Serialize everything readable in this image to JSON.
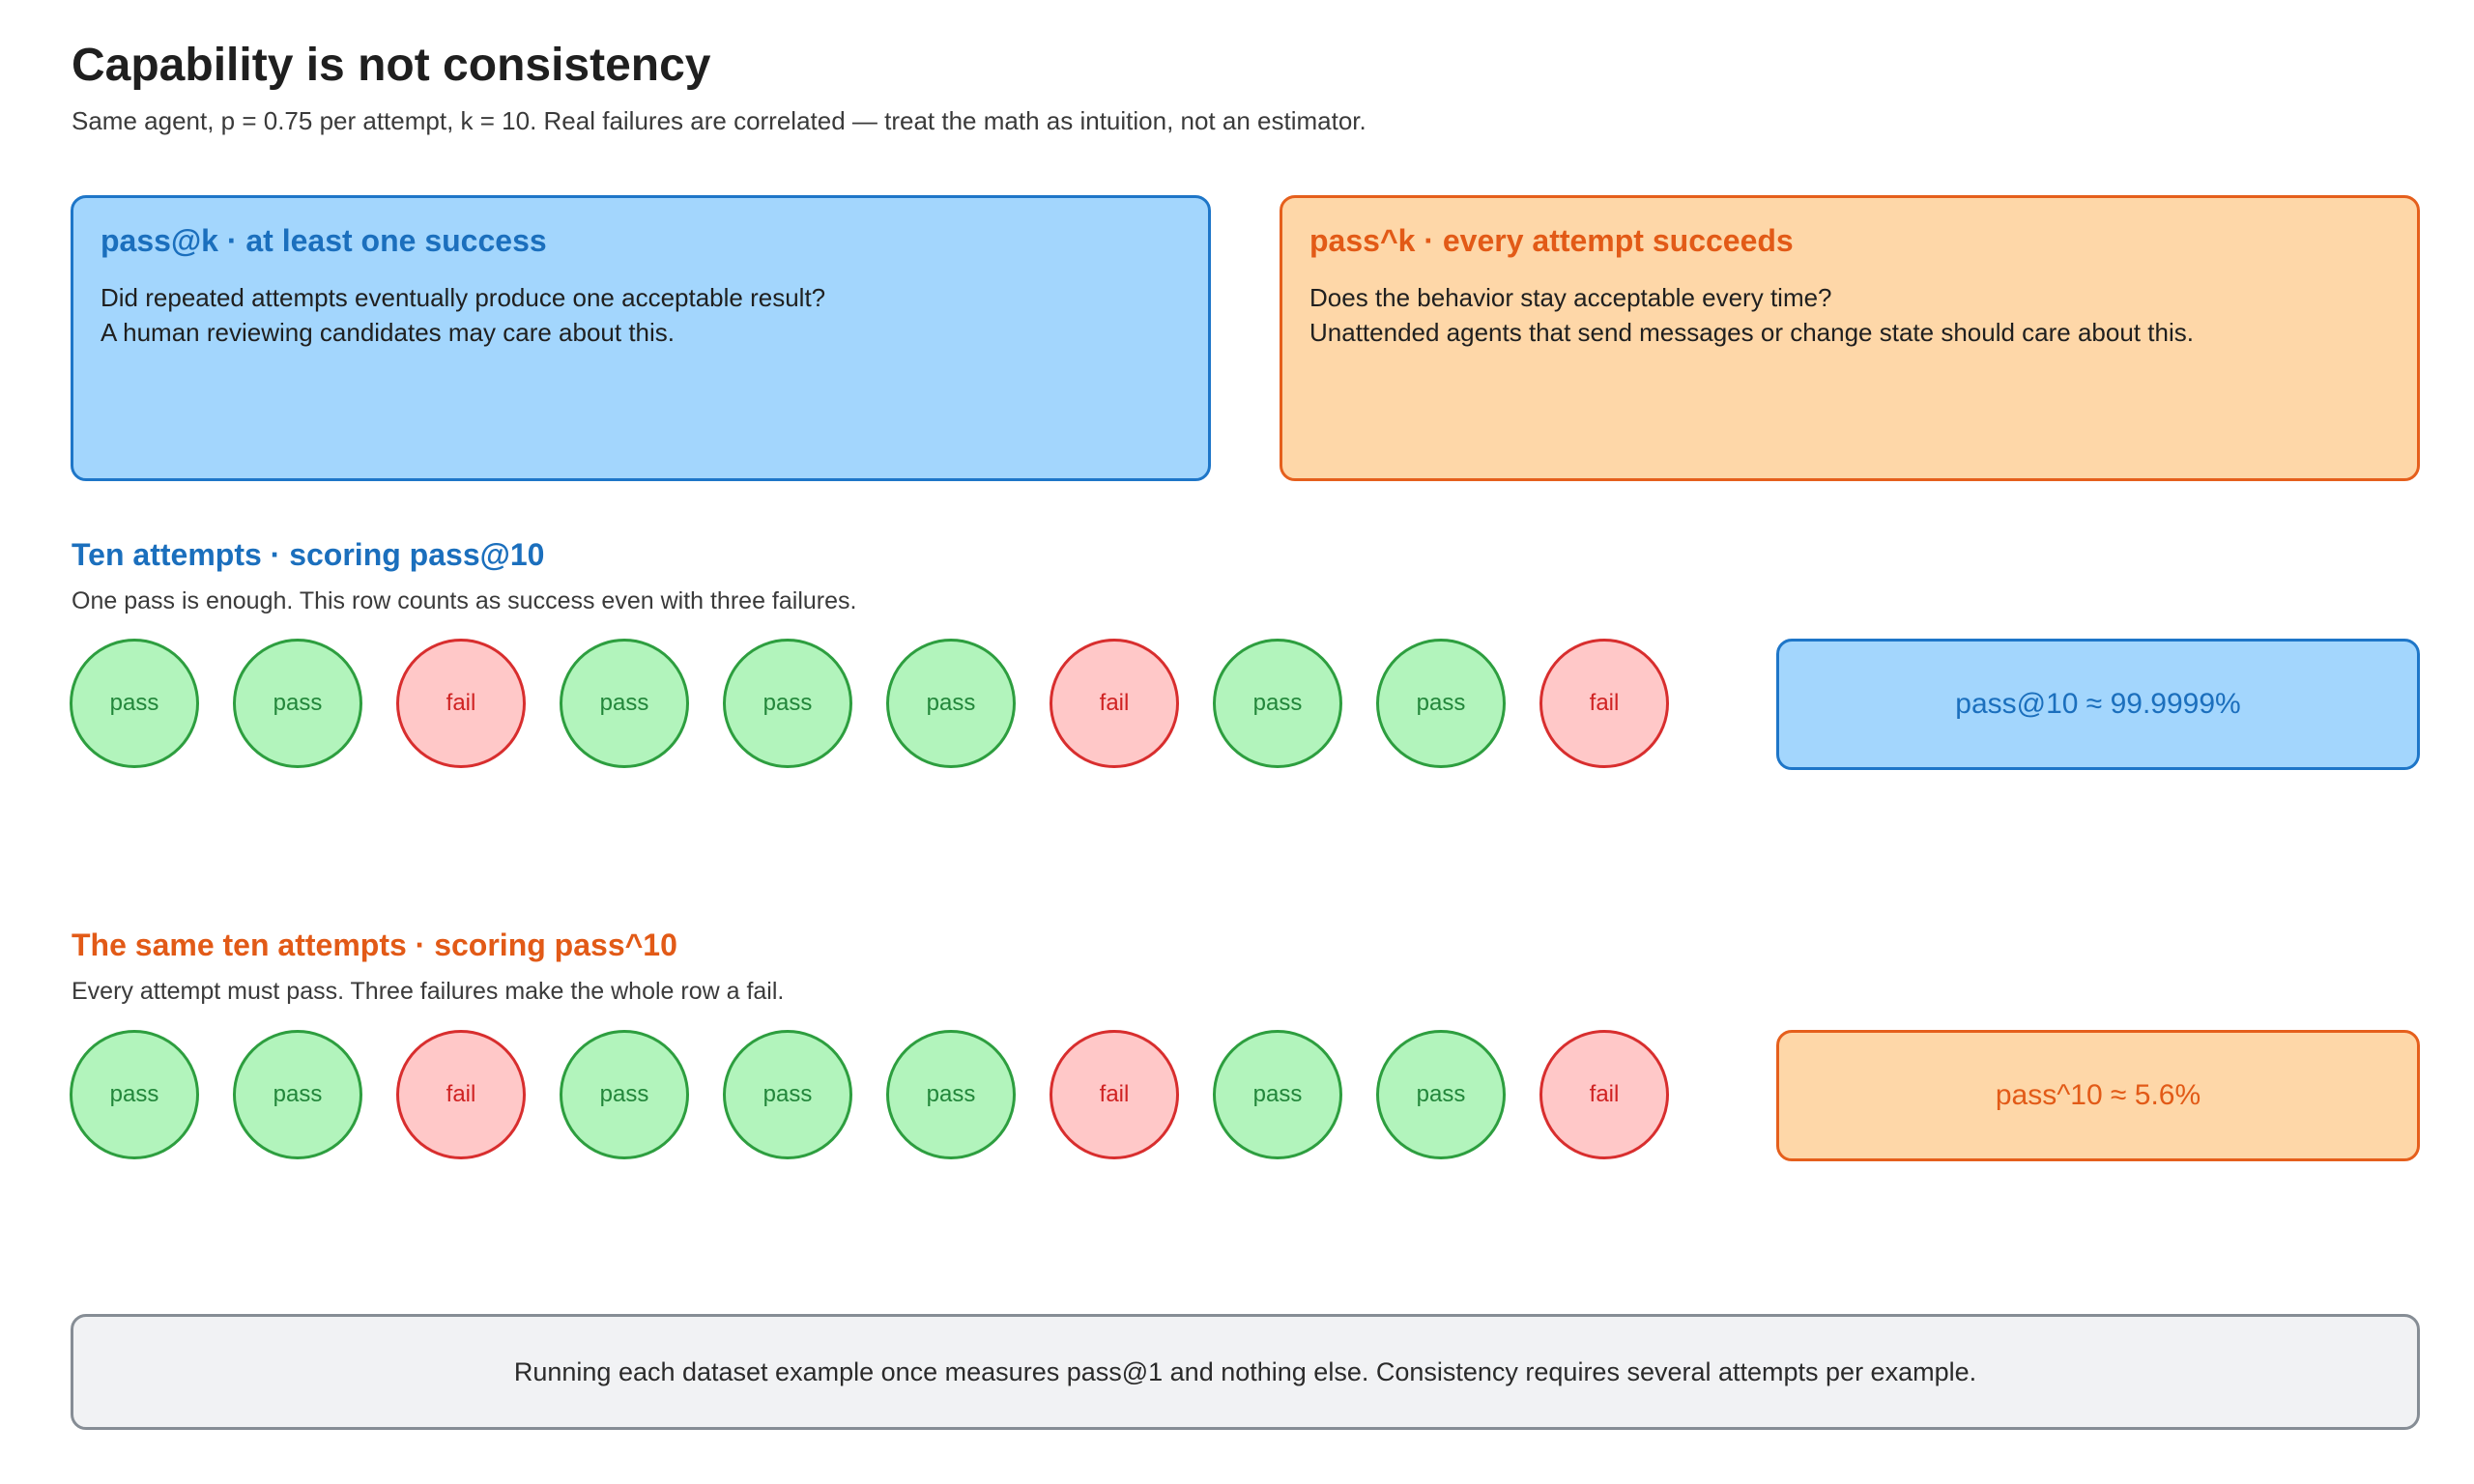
{
  "header": {
    "title": "Capability is not consistency",
    "subtitle": "Same agent, p = 0.75 per attempt, k = 10. Real failures are correlated — treat the math as intuition, not an estimator."
  },
  "cards": {
    "pass_at_k": {
      "title": "pass@k · at least one success",
      "line1": "Did repeated attempts eventually produce one acceptable result?",
      "line2": "A human reviewing candidates may care about this."
    },
    "pass_pow_k": {
      "title": "pass^k · every attempt succeeds",
      "line1": "Does the behavior stay acceptable every time?",
      "line2": "Unattended agents that send messages or change state should care about this."
    }
  },
  "section1": {
    "title": "Ten attempts · scoring pass@10",
    "description": "One pass is enough. This row counts as success even with three failures.",
    "result": "pass@10 ≈ 99.9999%"
  },
  "section2": {
    "title": "The same ten attempts · scoring pass^10",
    "description": "Every attempt must pass. Three failures make the whole row a fail.",
    "result": "pass^10 ≈ 5.6%"
  },
  "attempts": [
    "pass",
    "pass",
    "fail",
    "pass",
    "pass",
    "pass",
    "fail",
    "pass",
    "pass",
    "fail"
  ],
  "footer_note": "Running each dataset example once measures pass@1 and nothing else. Consistency requires several attempts per example.",
  "colors": {
    "blue_accent": "#1b6fbd",
    "orange_accent": "#e25a17",
    "pass_fill": "#b2f4bc",
    "fail_fill": "#ffc8c8"
  }
}
